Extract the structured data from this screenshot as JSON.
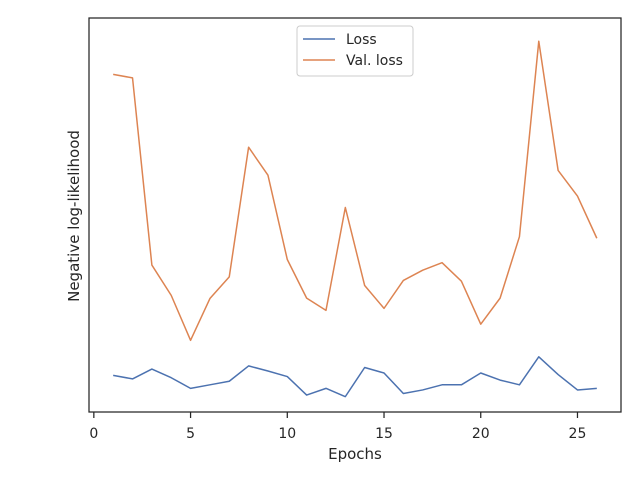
{
  "chart_data": {
    "type": "line",
    "title": "",
    "xlabel": "Epochs",
    "ylabel": "Negative log-likelihood",
    "xlim": [
      -0.25,
      27.25
    ],
    "ylim": [
      0,
      10
    ],
    "xticks": [
      0,
      5,
      10,
      15,
      20,
      25
    ],
    "xtick_labels": [
      "0",
      "5",
      "10",
      "15",
      "20",
      "25"
    ],
    "show_yticks": false,
    "grid": false,
    "legend": {
      "position": "top-center"
    },
    "x": [
      1,
      2,
      3,
      4,
      5,
      6,
      7,
      8,
      9,
      10,
      11,
      12,
      13,
      14,
      15,
      16,
      17,
      18,
      19,
      20,
      21,
      22,
      23,
      24,
      25,
      26
    ],
    "series": [
      {
        "name": "Loss",
        "color": "#4c72b0",
        "values": [
          0.93,
          0.84,
          1.09,
          0.87,
          0.6,
          0.69,
          0.78,
          1.17,
          1.04,
          0.9,
          0.43,
          0.6,
          0.39,
          1.13,
          0.99,
          0.47,
          0.56,
          0.69,
          0.69,
          0.99,
          0.81,
          0.69,
          1.4,
          0.95,
          0.56,
          0.6
        ]
      },
      {
        "name": "Val. loss",
        "color": "#dd8452",
        "values": [
          8.57,
          8.48,
          3.73,
          2.96,
          1.82,
          2.88,
          3.43,
          6.72,
          6.01,
          3.87,
          2.89,
          2.58,
          5.19,
          3.21,
          2.63,
          3.34,
          3.6,
          3.79,
          3.32,
          2.23,
          2.89,
          4.45,
          9.41,
          6.13,
          5.48,
          4.41
        ]
      }
    ]
  }
}
